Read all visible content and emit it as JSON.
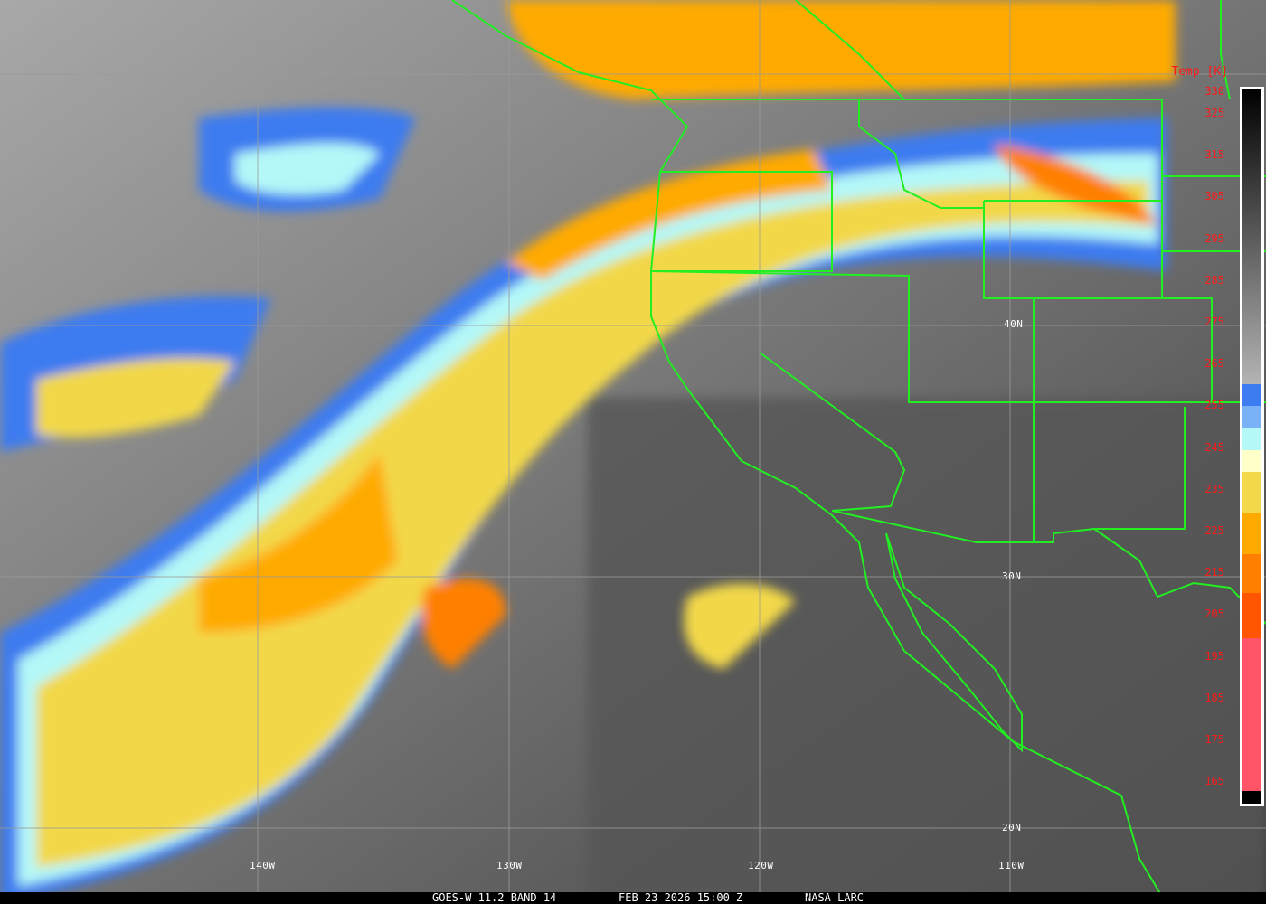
{
  "caption": {
    "satellite": "GOES-W 11.2 BAND 14",
    "datetime": "FEB 23 2026 15:00 Z",
    "source": "NASA LARC"
  },
  "colorbar": {
    "title": "Temp [K]",
    "labels": [
      "330",
      "325",
      "315",
      "305",
      "295",
      "285",
      "275",
      "265",
      "255",
      "245",
      "235",
      "225",
      "215",
      "205",
      "195",
      "185",
      "175",
      "165"
    ],
    "colors": {
      "gray_top": "#000000",
      "gray_bottom": "#b4b4b4",
      "blue": "#3c7cf0",
      "light_blue": "#7ab2f8",
      "cyan": "#b4f8f8",
      "cream": "#ffffc8",
      "yellow": "#f2d84a",
      "orange": "#ffaa00",
      "dark_orange": "#ff8000",
      "red_orange": "#ff5500",
      "pink": "#ff5468"
    }
  },
  "grid_labels": {
    "lon": [
      "140W",
      "130W",
      "120W",
      "110W"
    ],
    "lat": [
      "40N",
      "30N",
      "20N"
    ]
  },
  "colors": {
    "borders": "#22ee22",
    "grid": "#9a9a9a"
  }
}
